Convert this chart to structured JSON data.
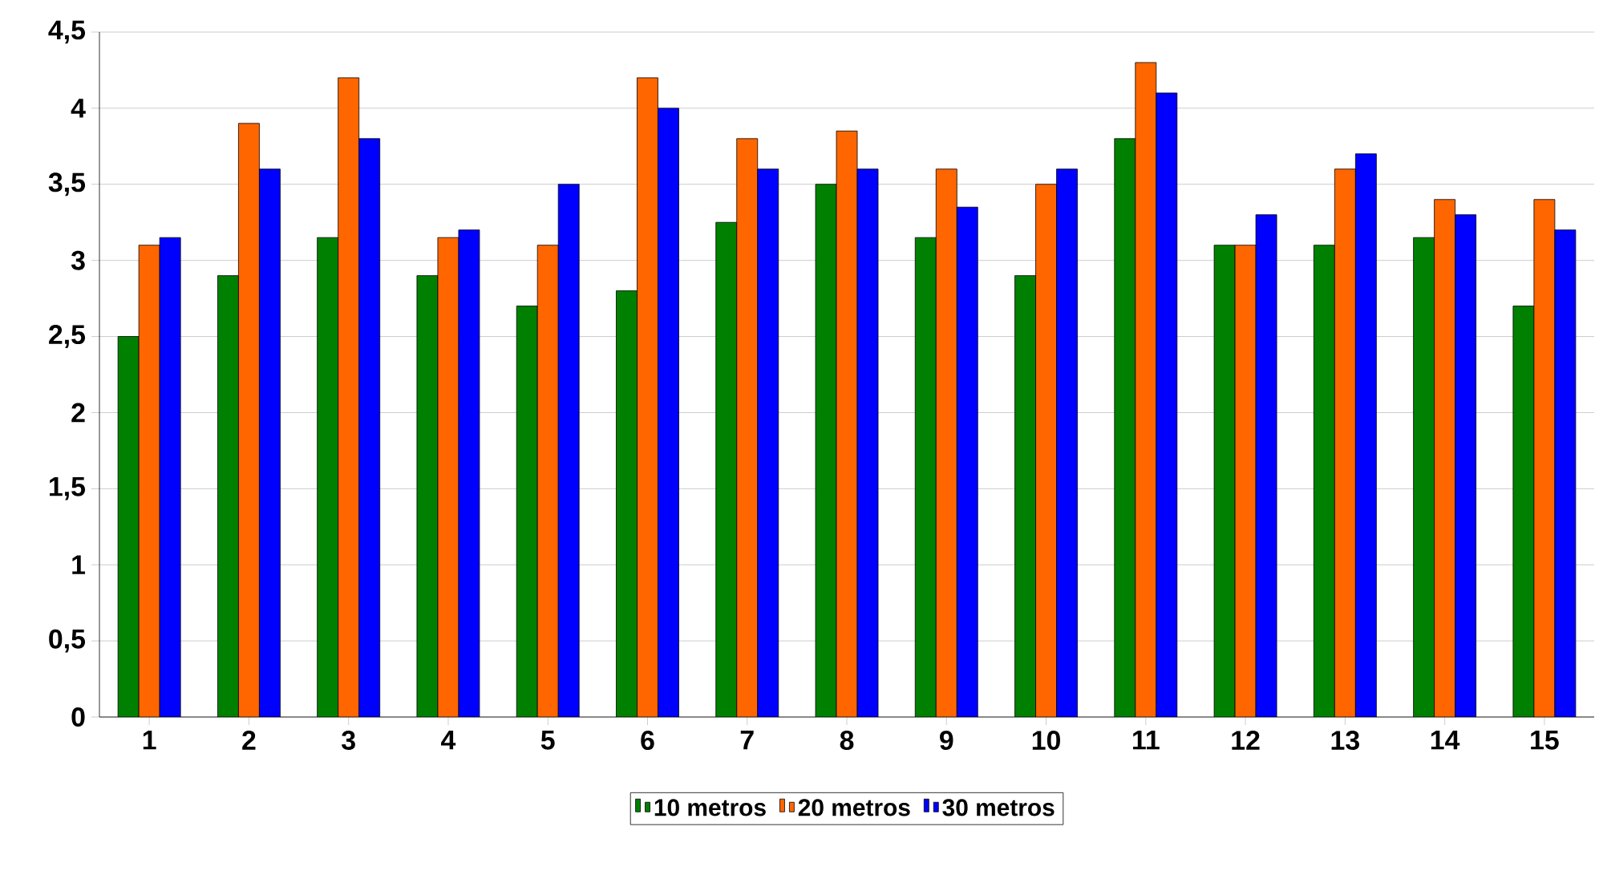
{
  "chart_data": {
    "type": "bar",
    "categories": [
      "1",
      "2",
      "3",
      "4",
      "5",
      "6",
      "7",
      "8",
      "9",
      "10",
      "11",
      "12",
      "13",
      "14",
      "15"
    ],
    "series": [
      {
        "name": "10 metros",
        "color": "#008000",
        "values": [
          2.5,
          2.9,
          3.15,
          2.9,
          2.7,
          2.8,
          3.25,
          3.5,
          3.15,
          2.9,
          3.8,
          3.1,
          3.1,
          3.15,
          2.7
        ]
      },
      {
        "name": "20 metros",
        "color": "#ff6600",
        "values": [
          3.1,
          3.9,
          4.2,
          3.15,
          3.1,
          4.2,
          3.8,
          3.85,
          3.6,
          3.5,
          4.3,
          3.1,
          3.6,
          3.4,
          3.4
        ]
      },
      {
        "name": "30 metros",
        "color": "#0000ff",
        "values": [
          3.15,
          3.6,
          3.8,
          3.2,
          3.5,
          4.0,
          3.6,
          3.6,
          3.35,
          3.6,
          4.1,
          3.3,
          3.7,
          3.3,
          3.2
        ]
      }
    ],
    "ylim": [
      0,
      4.5
    ],
    "yticks": [
      0,
      {
        "value": 0.5,
        "label": "0,5"
      },
      1,
      {
        "value": 1.5,
        "label": "1,5"
      },
      2,
      {
        "value": 2.5,
        "label": "2,5"
      },
      3,
      {
        "value": 3.5,
        "label": "3,5"
      },
      4,
      {
        "value": 4.5,
        "label": "4,5"
      }
    ],
    "grid": "y",
    "legend": "bottom"
  }
}
